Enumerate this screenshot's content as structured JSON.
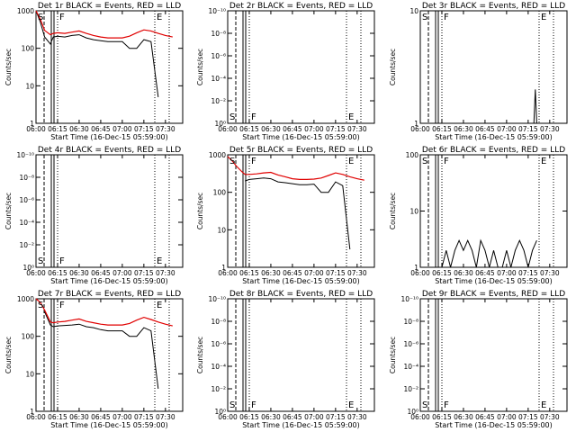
{
  "figure_header": {
    "legend_text": "BLACK = Events, RED = LLD",
    "xlabel": "Start Time (16-Dec-15 05:59:00)",
    "ylabel": "Counts/sec",
    "x_tick_labels": [
      "06:00",
      "06:15",
      "06:30",
      "06:45",
      "07:00",
      "07:15",
      "07:30"
    ]
  },
  "colors": {
    "events": "#000000",
    "lld": "#e00000"
  },
  "chart_data": [
    {
      "type": "line",
      "title": "Det 1r BLACK = Events, RED = LLD",
      "y_scale": "log",
      "ylim": [
        1,
        1000
      ],
      "y_tick_labels": [
        "1000",
        "100",
        "10",
        "1"
      ],
      "markers": [
        "S",
        "F",
        "E"
      ],
      "x": [
        "06:00",
        "06:03",
        "06:06",
        "06:10",
        "06:12",
        "06:15",
        "06:20",
        "06:25",
        "06:30",
        "06:35",
        "06:40",
        "06:45",
        "06:50",
        "06:55",
        "07:00",
        "07:05",
        "07:10",
        "07:15",
        "07:20",
        "07:25",
        "07:30",
        "07:35"
      ],
      "series": [
        {
          "name": "Events",
          "values": [
            1000,
            500,
            200,
            130,
            200,
            210,
            200,
            220,
            230,
            190,
            170,
            160,
            150,
            150,
            150,
            100,
            100,
            170,
            150,
            5,
            null,
            null
          ]
        },
        {
          "name": "LLD",
          "values": [
            1000,
            600,
            300,
            230,
            250,
            260,
            250,
            270,
            290,
            250,
            220,
            200,
            190,
            190,
            190,
            210,
            260,
            310,
            290,
            250,
            220,
            200
          ]
        }
      ]
    },
    {
      "type": "line",
      "title": "Det 2r BLACK = Events, RED = LLD",
      "y_scale": "log",
      "ylim": [
        1.0,
        1e-10
      ],
      "y_tick_labels": [
        "10⁻¹⁰",
        "10⁻⁸",
        "10⁻⁶",
        "10⁻⁴",
        "10⁻²",
        "10⁰"
      ],
      "markers": [
        "S",
        "F",
        "E"
      ],
      "series": []
    },
    {
      "type": "line",
      "title": "Det 3r BLACK = Events, RED = LLD",
      "y_scale": "log",
      "ylim": [
        1,
        10
      ],
      "y_tick_labels": [
        "10",
        "1"
      ],
      "markers": [
        "S",
        "F",
        "E"
      ],
      "x": [
        "07:19",
        "07:20",
        "07:21"
      ],
      "series": [
        {
          "name": "Events",
          "values": [
            1,
            2,
            1
          ]
        }
      ]
    },
    {
      "type": "line",
      "title": "Det 4r BLACK = Events, RED = LLD",
      "y_scale": "log",
      "ylim": [
        1.0,
        1e-10
      ],
      "y_tick_labels": [
        "10⁻¹⁰",
        "10⁻⁸",
        "10⁻⁶",
        "10⁻⁴",
        "10⁻²",
        "10⁰"
      ],
      "markers": [
        "S",
        "F",
        "E"
      ],
      "series": []
    },
    {
      "type": "line",
      "title": "Det 5r BLACK = Events, RED = LLD",
      "y_scale": "log",
      "ylim": [
        1,
        1000
      ],
      "y_tick_labels": [
        "1000",
        "100",
        "10",
        "1"
      ],
      "markers": [
        "S",
        "F",
        "E"
      ],
      "x": [
        "06:00",
        "06:03",
        "06:06",
        "06:10",
        "06:12",
        "06:15",
        "06:20",
        "06:25",
        "06:30",
        "06:35",
        "06:40",
        "06:45",
        "06:50",
        "06:55",
        "07:00",
        "07:05",
        "07:10",
        "07:15",
        "07:20",
        "07:25",
        "07:30",
        "07:35"
      ],
      "series": [
        {
          "name": "Events",
          "values": [
            null,
            null,
            null,
            null,
            200,
            220,
            230,
            240,
            230,
            190,
            180,
            170,
            160,
            160,
            165,
            100,
            100,
            190,
            150,
            3,
            null,
            null
          ]
        },
        {
          "name": "LLD",
          "values": [
            900,
            700,
            500,
            350,
            300,
            300,
            310,
            330,
            340,
            290,
            260,
            230,
            220,
            220,
            225,
            240,
            280,
            330,
            300,
            260,
            230,
            210
          ]
        }
      ]
    },
    {
      "type": "line",
      "title": "Det 6r BLACK = Events, RED = LLD",
      "y_scale": "log",
      "ylim": [
        1,
        100
      ],
      "y_tick_labels": [
        "100",
        "10",
        "1"
      ],
      "markers": [
        "S",
        "F",
        "E"
      ],
      "x": [
        "06:15",
        "06:18",
        "06:21",
        "06:24",
        "06:27",
        "06:30",
        "06:33",
        "06:36",
        "06:39",
        "06:42",
        "06:45",
        "06:48",
        "06:51",
        "06:54",
        "06:57",
        "07:00",
        "07:03",
        "07:06",
        "07:09",
        "07:12",
        "07:15",
        "07:18",
        "07:21"
      ],
      "series": [
        {
          "name": "Events",
          "values": [
            1,
            2,
            1,
            2,
            3,
            2,
            3,
            2,
            1,
            3,
            2,
            1,
            2,
            1,
            1,
            2,
            1,
            2,
            3,
            2,
            1,
            2,
            3
          ]
        }
      ]
    },
    {
      "type": "line",
      "title": "Det 7r BLACK = Events, RED = LLD",
      "y_scale": "log",
      "ylim": [
        1,
        1000
      ],
      "y_tick_labels": [
        "1000",
        "100",
        "10",
        "1"
      ],
      "markers": [
        "S",
        "F",
        "E"
      ],
      "x": [
        "06:00",
        "06:03",
        "06:06",
        "06:10",
        "06:12",
        "06:15",
        "06:20",
        "06:25",
        "06:30",
        "06:35",
        "06:40",
        "06:45",
        "06:50",
        "06:55",
        "07:00",
        "07:05",
        "07:10",
        "07:15",
        "07:20",
        "07:25",
        "07:30",
        "07:35"
      ],
      "series": [
        {
          "name": "Events",
          "values": [
            null,
            null,
            450,
            200,
            180,
            190,
            195,
            200,
            210,
            180,
            170,
            150,
            140,
            140,
            140,
            100,
            100,
            170,
            140,
            4,
            null,
            null
          ]
        },
        {
          "name": "LLD",
          "values": [
            1000,
            800,
            500,
            240,
            230,
            240,
            250,
            270,
            290,
            250,
            230,
            210,
            200,
            200,
            200,
            220,
            270,
            320,
            280,
            240,
            210,
            190
          ]
        }
      ]
    },
    {
      "type": "line",
      "title": "Det 8r BLACK = Events, RED = LLD",
      "y_scale": "log",
      "ylim": [
        1.0,
        1e-10
      ],
      "y_tick_labels": [
        "10⁻¹⁰",
        "10⁻⁸",
        "10⁻⁶",
        "10⁻⁴",
        "10⁻²",
        "10⁰"
      ],
      "markers": [
        "S",
        "F",
        "E"
      ],
      "series": []
    },
    {
      "type": "line",
      "title": "Det 9r BLACK = Events, RED = LLD",
      "y_scale": "log",
      "ylim": [
        1.0,
        1e-10
      ],
      "y_tick_labels": [
        "10⁻¹⁰",
        "10⁻⁸",
        "10⁻⁶",
        "10⁻⁴",
        "10⁻²",
        "10⁰"
      ],
      "markers": [
        "S",
        "F",
        "E"
      ],
      "series": []
    }
  ]
}
